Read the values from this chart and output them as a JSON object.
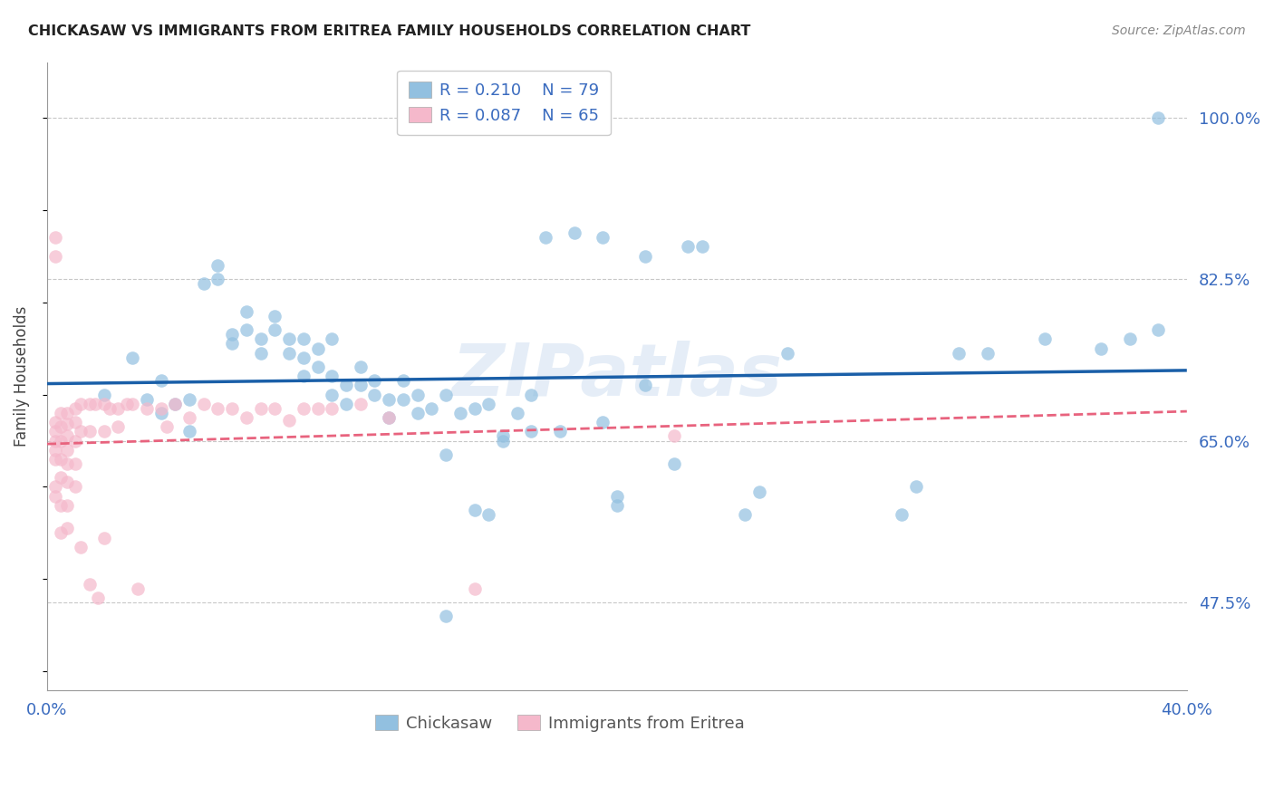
{
  "title": "CHICKASAW VS IMMIGRANTS FROM ERITREA FAMILY HOUSEHOLDS CORRELATION CHART",
  "source": "Source: ZipAtlas.com",
  "ylabel": "Family Households",
  "yticks_pct": [
    47.5,
    65.0,
    82.5,
    100.0
  ],
  "ytick_labels": [
    "47.5%",
    "65.0%",
    "82.5%",
    "100.0%"
  ],
  "xlim": [
    0.0,
    0.4
  ],
  "ylim": [
    0.38,
    1.06
  ],
  "legend_blue_r": "0.210",
  "legend_blue_n": "79",
  "legend_pink_r": "0.087",
  "legend_pink_n": "65",
  "blue_color": "#92c0e0",
  "pink_color": "#f5b8cb",
  "trend_blue_color": "#1a5fa8",
  "trend_pink_color": "#e8637e",
  "watermark_text": "ZIPatlas",
  "blue_scatter_x": [
    0.02,
    0.03,
    0.035,
    0.04,
    0.04,
    0.045,
    0.05,
    0.05,
    0.055,
    0.06,
    0.06,
    0.065,
    0.065,
    0.07,
    0.07,
    0.075,
    0.075,
    0.08,
    0.08,
    0.085,
    0.085,
    0.09,
    0.09,
    0.09,
    0.095,
    0.095,
    0.1,
    0.1,
    0.1,
    0.105,
    0.105,
    0.11,
    0.11,
    0.115,
    0.115,
    0.12,
    0.12,
    0.125,
    0.125,
    0.13,
    0.13,
    0.135,
    0.14,
    0.14,
    0.145,
    0.15,
    0.15,
    0.155,
    0.16,
    0.165,
    0.17,
    0.175,
    0.185,
    0.195,
    0.2,
    0.2,
    0.21,
    0.22,
    0.23,
    0.245,
    0.25,
    0.26,
    0.3,
    0.305,
    0.32,
    0.33,
    0.35,
    0.37,
    0.38,
    0.39,
    0.21,
    0.225,
    0.39,
    0.14,
    0.155,
    0.16,
    0.17,
    0.18,
    0.195
  ],
  "blue_scatter_y": [
    0.7,
    0.74,
    0.695,
    0.68,
    0.715,
    0.69,
    0.66,
    0.695,
    0.82,
    0.825,
    0.84,
    0.755,
    0.765,
    0.77,
    0.79,
    0.745,
    0.76,
    0.77,
    0.785,
    0.745,
    0.76,
    0.72,
    0.74,
    0.76,
    0.73,
    0.75,
    0.7,
    0.72,
    0.76,
    0.69,
    0.71,
    0.71,
    0.73,
    0.7,
    0.715,
    0.675,
    0.695,
    0.695,
    0.715,
    0.68,
    0.7,
    0.685,
    0.7,
    0.635,
    0.68,
    0.685,
    0.575,
    0.69,
    0.65,
    0.68,
    0.7,
    0.87,
    0.875,
    0.87,
    0.59,
    0.58,
    0.71,
    0.625,
    0.86,
    0.57,
    0.595,
    0.745,
    0.57,
    0.6,
    0.745,
    0.745,
    0.76,
    0.75,
    0.76,
    0.77,
    0.85,
    0.86,
    1.0,
    0.46,
    0.57,
    0.655,
    0.66,
    0.66,
    0.67
  ],
  "pink_scatter_x": [
    0.003,
    0.003,
    0.003,
    0.003,
    0.003,
    0.003,
    0.003,
    0.003,
    0.003,
    0.005,
    0.005,
    0.005,
    0.005,
    0.005,
    0.005,
    0.005,
    0.007,
    0.007,
    0.007,
    0.007,
    0.007,
    0.007,
    0.007,
    0.007,
    0.01,
    0.01,
    0.01,
    0.01,
    0.01,
    0.012,
    0.012,
    0.012,
    0.015,
    0.015,
    0.015,
    0.017,
    0.018,
    0.02,
    0.02,
    0.02,
    0.022,
    0.025,
    0.025,
    0.028,
    0.03,
    0.032,
    0.035,
    0.04,
    0.042,
    0.045,
    0.05,
    0.055,
    0.06,
    0.065,
    0.07,
    0.075,
    0.08,
    0.085,
    0.09,
    0.095,
    0.1,
    0.11,
    0.12,
    0.15,
    0.22
  ],
  "pink_scatter_y": [
    0.87,
    0.85,
    0.67,
    0.66,
    0.65,
    0.64,
    0.63,
    0.6,
    0.59,
    0.68,
    0.665,
    0.65,
    0.63,
    0.61,
    0.58,
    0.55,
    0.68,
    0.668,
    0.655,
    0.64,
    0.625,
    0.605,
    0.58,
    0.555,
    0.685,
    0.67,
    0.65,
    0.625,
    0.6,
    0.69,
    0.66,
    0.535,
    0.69,
    0.66,
    0.495,
    0.69,
    0.48,
    0.69,
    0.66,
    0.545,
    0.685,
    0.685,
    0.665,
    0.69,
    0.69,
    0.49,
    0.685,
    0.685,
    0.665,
    0.69,
    0.675,
    0.69,
    0.685,
    0.685,
    0.675,
    0.685,
    0.685,
    0.672,
    0.685,
    0.685,
    0.685,
    0.69,
    0.675,
    0.49,
    0.655
  ]
}
